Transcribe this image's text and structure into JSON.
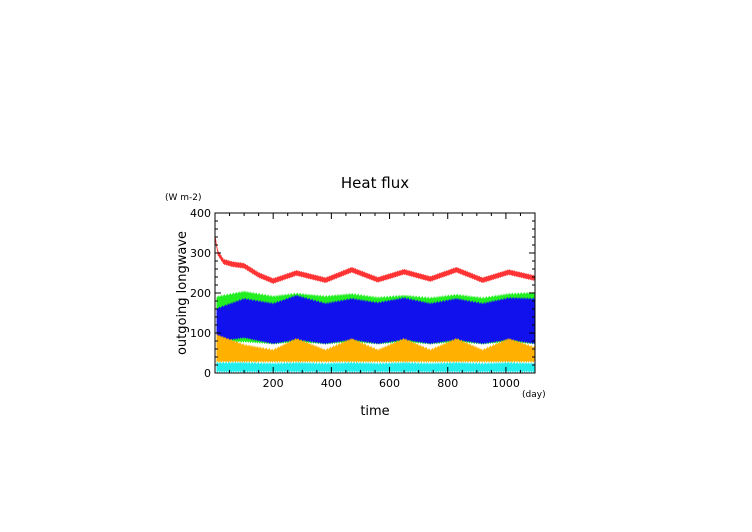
{
  "chart_data": {
    "type": "area",
    "title": "Heat flux",
    "xlabel": "time",
    "ylabel": "outgoing longwave",
    "x_unit": "(day)",
    "y_unit": "(W m-2)",
    "xlim": [
      0,
      1100
    ],
    "ylim": [
      0,
      400
    ],
    "x_ticks": [
      "200",
      "400",
      "600",
      "800",
      "1000"
    ],
    "y_ticks": [
      "0",
      "100",
      "200",
      "300",
      "400"
    ],
    "grid": false,
    "legend": "none",
    "colors": {
      "red": "#ff3333",
      "green": "#22ee22",
      "blue": "#1111ee",
      "orange": "#ffb000",
      "cyan": "#22eeee"
    },
    "bands": [
      {
        "color": "green",
        "x": [
          5,
          100,
          200,
          280,
          380,
          470,
          560,
          650,
          740,
          830,
          920,
          1010,
          1100
        ],
        "low": [
          75,
          75,
          70,
          75,
          70,
          75,
          70,
          75,
          70,
          75,
          70,
          75,
          70
        ],
        "high": [
          195,
          208,
          196,
          203,
          196,
          202,
          193,
          198,
          192,
          200,
          192,
          202,
          205
        ]
      },
      {
        "color": "blue",
        "x": [
          5,
          100,
          200,
          280,
          380,
          470,
          560,
          650,
          740,
          830,
          920,
          1010,
          1100
        ],
        "low": [
          75,
          85,
          70,
          80,
          70,
          80,
          70,
          80,
          70,
          80,
          70,
          80,
          70
        ],
        "high": [
          165,
          190,
          178,
          198,
          178,
          190,
          180,
          192,
          178,
          190,
          178,
          192,
          190
        ]
      },
      {
        "color": "orange",
        "x": [
          5,
          100,
          200,
          280,
          380,
          470,
          560,
          650,
          740,
          830,
          920,
          1010,
          1100
        ],
        "low": [
          25,
          25,
          25,
          25,
          25,
          25,
          25,
          25,
          25,
          25,
          25,
          25,
          25
        ],
        "high": [
          100,
          75,
          62,
          90,
          62,
          90,
          62,
          90,
          62,
          90,
          62,
          90,
          68
        ]
      },
      {
        "color": "cyan",
        "x": [
          5,
          100,
          200,
          280,
          380,
          470,
          560,
          650,
          740,
          830,
          920,
          1010,
          1100
        ],
        "low": [
          0,
          0,
          0,
          0,
          0,
          0,
          0,
          0,
          0,
          0,
          0,
          0,
          0
        ],
        "high": [
          30,
          30,
          28,
          30,
          28,
          30,
          28,
          30,
          28,
          30,
          28,
          30,
          28
        ]
      }
    ],
    "red_line": {
      "x": [
        0,
        10,
        30,
        60,
        100,
        150,
        200,
        280,
        380,
        470,
        560,
        650,
        740,
        830,
        920,
        1010,
        1100
      ],
      "y": [
        340,
        300,
        278,
        272,
        268,
        245,
        230,
        250,
        232,
        258,
        233,
        253,
        235,
        258,
        232,
        252,
        237
      ]
    }
  }
}
